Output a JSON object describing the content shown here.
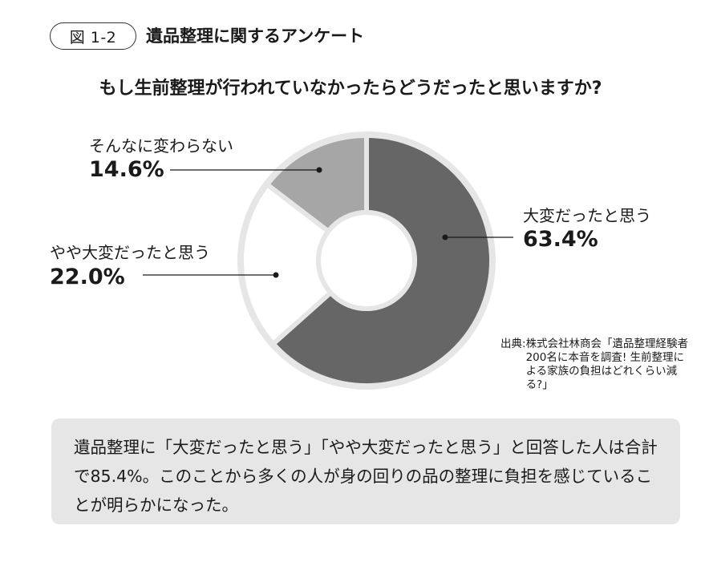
{
  "header": {
    "figure_number": "図 1-2",
    "title": "遺品整理に関するアンケート"
  },
  "question": "もし生前整理が行われていなかったらどうだったと思いますか?",
  "chart_data": {
    "type": "pie",
    "style": "donut",
    "title": "もし生前整理が行われていなかったらどうだったと思いますか?",
    "slices": [
      {
        "label": "大変だったと思う",
        "value": 63.4,
        "display": "63.4%",
        "color": "#666666"
      },
      {
        "label": "やや大変だったと思う",
        "value": 22.0,
        "display": "22.0%",
        "color": "#ffffff"
      },
      {
        "label": "そんなに変わらない",
        "value": 14.6,
        "display": "14.6%",
        "color": "#a6a6a6"
      }
    ],
    "legend": "none",
    "annotation_style": "leader-lines"
  },
  "source": {
    "label": "出典:",
    "text": "株式会社林商会「遺品整理経験者200名に本音を調査! 生前整理による家族の負担はどれくらい減る?」"
  },
  "summary": "遺品整理に「大変だったと思う」「やや大変だったと思う」と回答した人は合計で85.4%。このことから多くの人が身の回りの品の整理に負担を感じていることが明らかになった。",
  "colors": {
    "ring_outline": "#e6e6e6",
    "leader_line": "#1a1a1a",
    "summary_bg": "#e6e6e6"
  }
}
